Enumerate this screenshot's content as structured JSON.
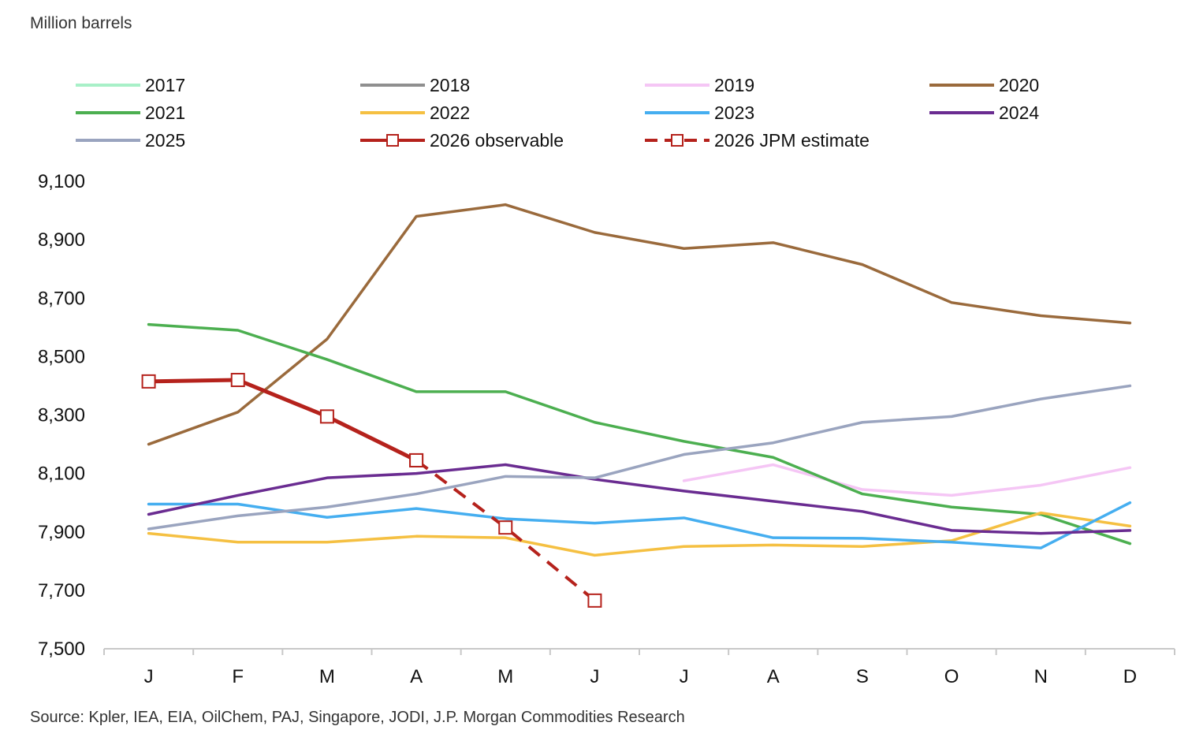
{
  "header": {
    "unit_label": "Million barrels"
  },
  "footer": {
    "source": "Source: Kpler, IEA, EIA, OilChem, PAJ, Singapore, JODI, J.P. Morgan Commodities Research"
  },
  "chart_data": {
    "type": "line",
    "title": "",
    "ylabel": "Million barrels",
    "xlabel": "",
    "categories": [
      "J",
      "F",
      "M",
      "A",
      "M",
      "J",
      "J",
      "A",
      "S",
      "O",
      "N",
      "D"
    ],
    "ylim": [
      7500,
      9100
    ],
    "yticks": [
      7500,
      7700,
      7900,
      8100,
      8300,
      8500,
      8700,
      8900,
      9100
    ],
    "ytick_labels": [
      "7,500",
      "7,700",
      "7,900",
      "8,100",
      "8,300",
      "8,500",
      "8,700",
      "8,900",
      "9,100"
    ],
    "grid": false,
    "legend_position": "top",
    "series": [
      {
        "name": "2017",
        "color": "#a8f0c8",
        "dash": false,
        "markers": false,
        "values": [
          null,
          null,
          null,
          null,
          null,
          null,
          null,
          null,
          null,
          null,
          null,
          null
        ]
      },
      {
        "name": "2018",
        "color": "#8f8f8f",
        "dash": false,
        "markers": false,
        "values": [
          null,
          null,
          null,
          null,
          null,
          null,
          null,
          null,
          null,
          null,
          null,
          null
        ]
      },
      {
        "name": "2019",
        "color": "#f5c6f5",
        "dash": false,
        "markers": false,
        "values": [
          null,
          null,
          null,
          null,
          null,
          null,
          8075,
          8130,
          8045,
          8025,
          8060,
          8120
        ]
      },
      {
        "name": "2020",
        "color": "#9a6a3c",
        "dash": false,
        "markers": false,
        "values": [
          8200,
          8310,
          8560,
          8980,
          9020,
          8925,
          8870,
          8890,
          8815,
          8685,
          8640,
          8615
        ]
      },
      {
        "name": "2021",
        "color": "#4caf50",
        "dash": false,
        "markers": false,
        "values": [
          8610,
          8590,
          8490,
          8380,
          8380,
          8275,
          8210,
          8155,
          8030,
          7985,
          7960,
          7860
        ]
      },
      {
        "name": "2022",
        "color": "#f5c042",
        "dash": false,
        "markers": false,
        "values": [
          7895,
          7865,
          7865,
          7885,
          7880,
          7820,
          7850,
          7855,
          7850,
          7870,
          7965,
          7920
        ]
      },
      {
        "name": "2023",
        "color": "#45aef0",
        "dash": false,
        "markers": false,
        "values": [
          7995,
          7995,
          7950,
          7980,
          7945,
          7930,
          7948,
          7880,
          7878,
          7865,
          7845,
          8000
        ]
      },
      {
        "name": "2024",
        "color": "#6a2c91",
        "dash": false,
        "markers": false,
        "values": [
          7960,
          8025,
          8085,
          8100,
          8130,
          8080,
          8040,
          8005,
          7970,
          7905,
          7895,
          7905
        ]
      },
      {
        "name": "2025",
        "color": "#9aa4bf",
        "dash": false,
        "markers": false,
        "values": [
          7910,
          7955,
          7985,
          8030,
          8090,
          8085,
          8165,
          8205,
          8275,
          8295,
          8355,
          8400
        ]
      },
      {
        "name": "2026 observable",
        "color": "#b5221c",
        "dash": false,
        "markers": true,
        "values": [
          8415,
          8420,
          8295,
          8145,
          null,
          null,
          null,
          null,
          null,
          null,
          null,
          null
        ]
      },
      {
        "name": "2026 JPM estimate",
        "color": "#b5221c",
        "dash": true,
        "markers": true,
        "values": [
          null,
          null,
          null,
          8145,
          7915,
          7665,
          null,
          null,
          null,
          null,
          null,
          null
        ]
      }
    ]
  }
}
